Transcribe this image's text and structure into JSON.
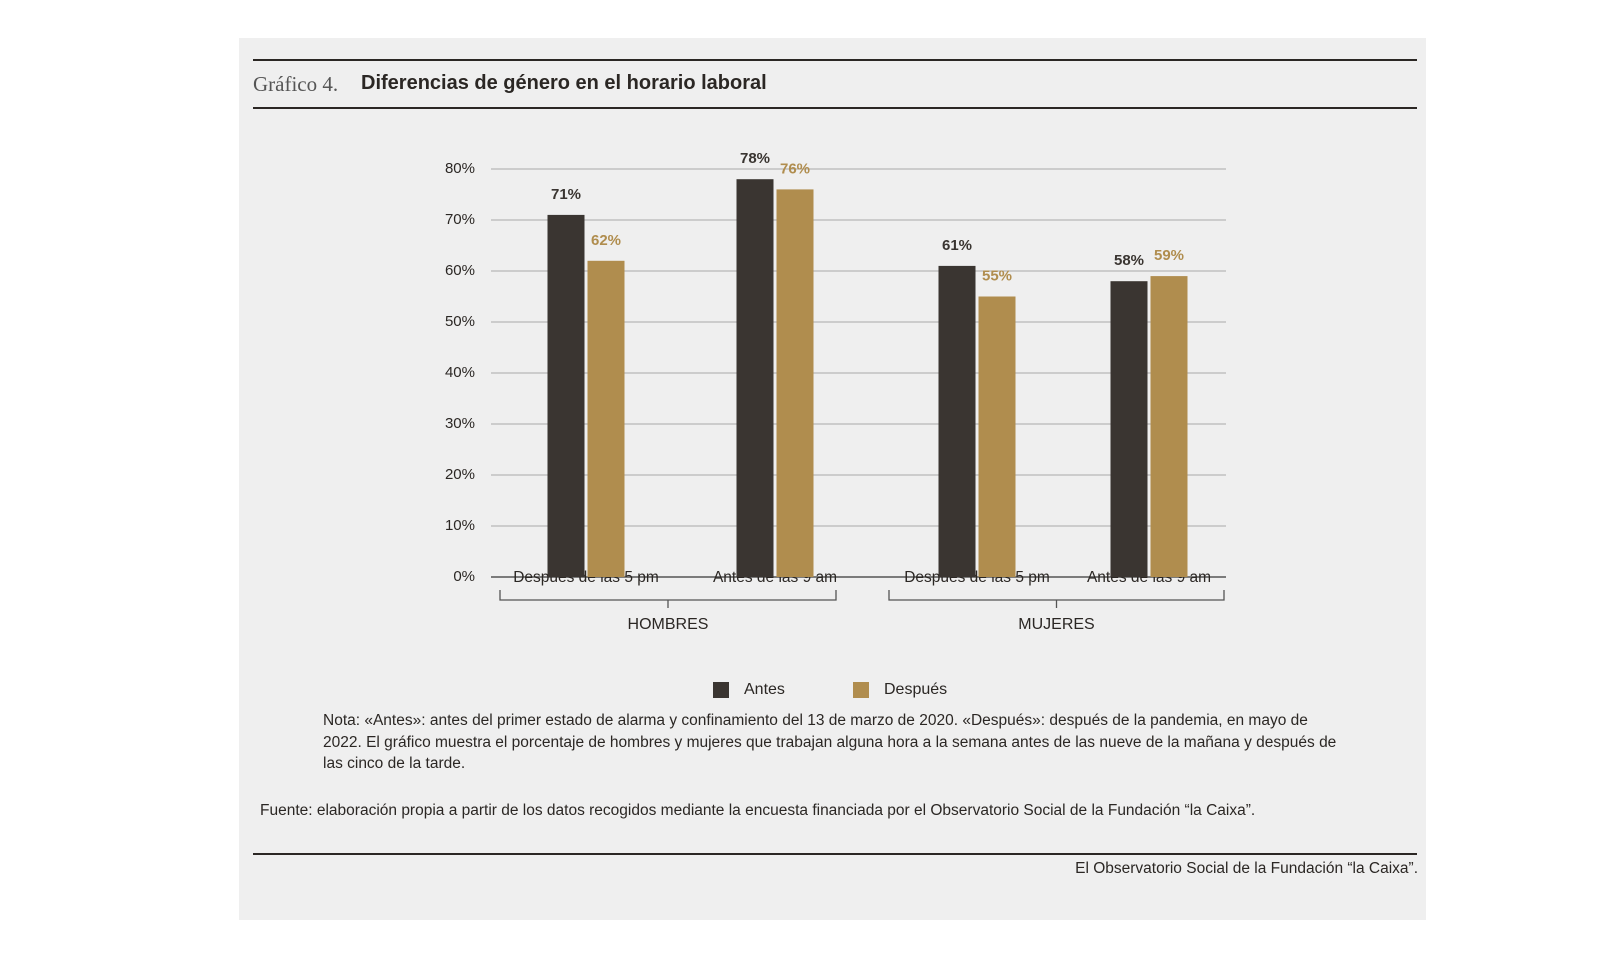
{
  "chart_data": {
    "type": "bar",
    "title_prefix": "Gráfico 4.",
    "title": "Diferencias de género en el horario laboral",
    "groups": [
      {
        "name": "HOMBRES",
        "categories": [
          "Después de las 5 pm",
          "Antes de las 9 am"
        ]
      },
      {
        "name": "MUJERES",
        "categories": [
          "Después de las 5 pm",
          "Antes de las 9 am"
        ]
      }
    ],
    "series": [
      {
        "name": "Antes",
        "color": "#3a3531",
        "values": [
          71,
          78,
          61,
          58
        ],
        "value_labels": [
          "71%",
          "78%",
          "61%",
          "58%"
        ]
      },
      {
        "name": "Después",
        "color": "#b08d4e",
        "values": [
          62,
          76,
          55,
          59
        ],
        "value_labels": [
          "62%",
          "76%",
          "55%",
          "59%"
        ]
      }
    ],
    "ylim": [
      0,
      80
    ],
    "yticks": [
      {
        "value": 0,
        "label": "0%"
      },
      {
        "value": 10,
        "label": "10%"
      },
      {
        "value": 20,
        "label": "20%"
      },
      {
        "value": 30,
        "label": "30%"
      },
      {
        "value": 40,
        "label": "40%"
      },
      {
        "value": 50,
        "label": "50%"
      },
      {
        "value": 60,
        "label": "60%"
      },
      {
        "value": 70,
        "label": "70%"
      },
      {
        "value": 80,
        "label": "80%"
      }
    ],
    "grid": true,
    "note": "Nota: «Antes»: antes del primer estado de alarma y confinamiento del 13 de marzo de 2020. «Después»: después de la pandemia, en mayo de 2022. El gráfico muestra el porcentaje de hombres y mujeres que trabajan alguna hora a la semana antes de las nueve de la mañana y después de las cinco de la tarde.",
    "source": "Fuente: elaboración propia a partir de los datos recogidos mediante la encuesta financiada por el Observatorio Social de la Fundación “la Caixa”.",
    "footer": "El Observatorio Social de la Fundación “la Caixa”."
  }
}
